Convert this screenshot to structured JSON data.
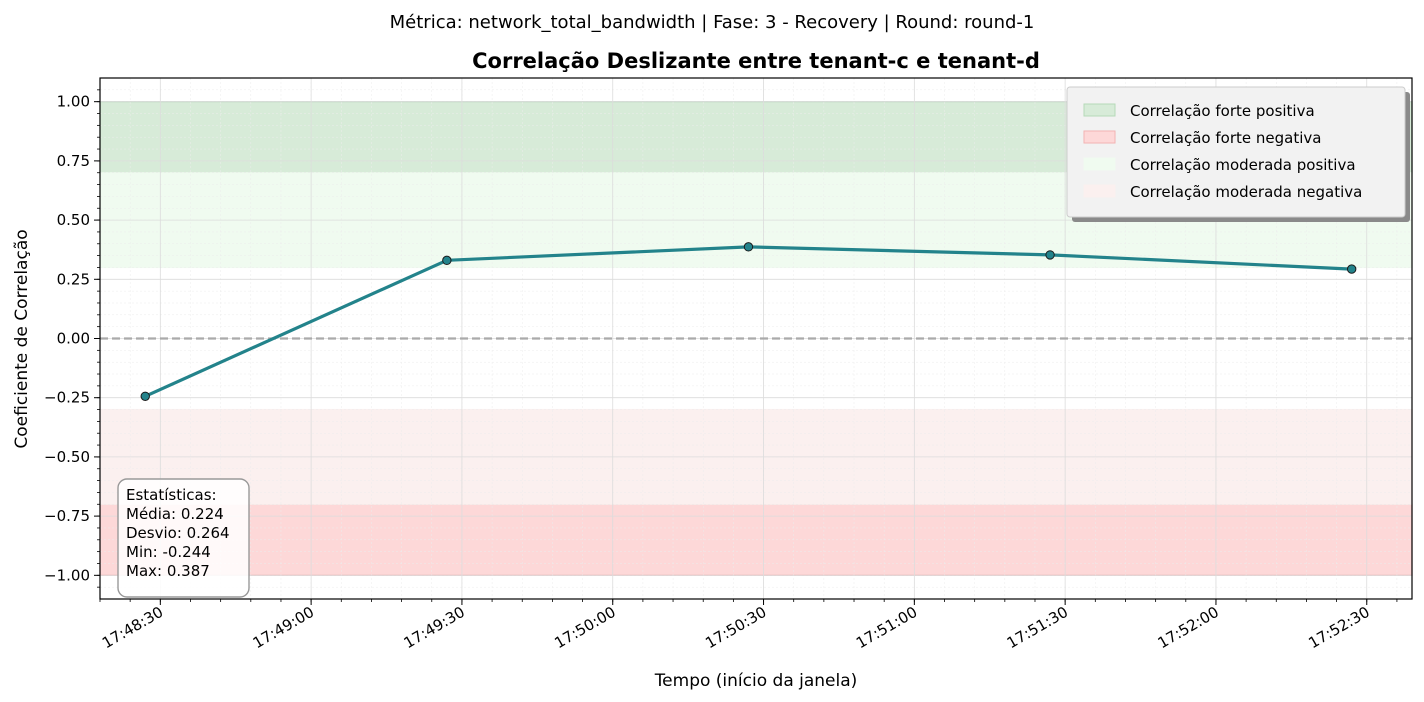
{
  "suptitle": "Métrica: network_total_bandwidth | Fase: 3 - Recovery | Round: round-1",
  "chart_data": {
    "type": "line",
    "title": "Correlação Deslizante entre tenant-c e tenant-d",
    "xlabel": "Tempo (início da janela)",
    "ylabel": "Coeficiente de Correlação",
    "xlim": [
      "17:48:18",
      "17:52:39"
    ],
    "ylim": [
      -1.1,
      1.1
    ],
    "x_ticks": [
      "17:48:30",
      "17:49:00",
      "17:49:30",
      "17:50:00",
      "17:50:30",
      "17:51:00",
      "17:51:30",
      "17:52:00",
      "17:52:30"
    ],
    "y_ticks": [
      1.0,
      0.75,
      0.5,
      0.25,
      0.0,
      -0.25,
      -0.5,
      -0.75,
      -1.0
    ],
    "y_tick_labels": [
      "1.00",
      "0.75",
      "0.50",
      "0.25",
      "0.00",
      "−0.25",
      "−0.50",
      "−0.75",
      "−1.00"
    ],
    "series": [
      {
        "color": "#23838b",
        "x": [
          "17:48:27",
          "17:49:27",
          "17:50:27",
          "17:51:27",
          "17:52:27"
        ],
        "y": [
          -0.244,
          0.33,
          0.387,
          0.353,
          0.293
        ]
      }
    ],
    "reference_line": {
      "y": 0.0,
      "style": "dashed",
      "color": "#aaaaaa"
    },
    "bands": [
      {
        "label": "Correlação forte positiva",
        "from": 0.7,
        "to": 1.0,
        "color": "#d7ebd8",
        "edge": "#b6dab8"
      },
      {
        "label": "Correlação forte negativa",
        "from": -1.0,
        "to": -0.7,
        "color": "#fdd8d8",
        "edge": "#f3b3b3"
      },
      {
        "label": "Correlação moderada positiva",
        "from": 0.3,
        "to": 0.7,
        "color": "#f0fbf0",
        "edge": "#f0fbf0"
      },
      {
        "label": "Correlação moderada negativa",
        "from": -0.7,
        "to": -0.3,
        "color": "#fbf0ef",
        "edge": "#fbf0ef"
      }
    ],
    "legend_position": "top-right",
    "grid": true,
    "stats_box": {
      "lines": [
        "Estatísticas:",
        "Média: 0.224",
        "Desvio: 0.264",
        "Min: -0.244",
        "Max: 0.387"
      ]
    }
  }
}
